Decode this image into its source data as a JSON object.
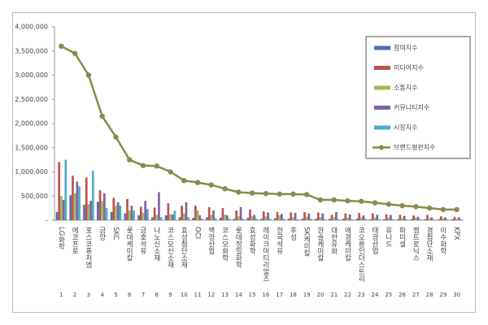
{
  "chart_data": {
    "type": "bar",
    "categories": [
      "LG화학",
      "에코프로",
      "포스코퓨처엠",
      "금양",
      "SKC",
      "롯데케미칼",
      "금호석유",
      "나노신소재",
      "코스모신소재",
      "효성첨단소재",
      "OCI",
      "백광산업",
      "코스모화학",
      "롯데정밀화학",
      "효성화학",
      "레이크머티리얼즈",
      "한국석유",
      "후성",
      "SK케미칼",
      "한솔케미칼",
      "대한유화",
      "애경케미칼",
      "코오롱인더스트리",
      "태광산업",
      "유니드",
      "파미셀",
      "켐트로닉스",
      "경첨단소재",
      "이수화학",
      "KPX"
    ],
    "ranks": [
      1,
      2,
      3,
      4,
      5,
      6,
      7,
      8,
      9,
      10,
      11,
      12,
      13,
      14,
      15,
      16,
      17,
      18,
      19,
      20,
      21,
      22,
      23,
      24,
      25,
      26,
      27,
      28,
      29,
      30
    ],
    "series": [
      {
        "name": "참여지수",
        "color": "#4f6fb5",
        "values": [
          170000,
          520000,
          320000,
          380000,
          170000,
          140000,
          100000,
          60000,
          100000,
          60000,
          50000,
          60000,
          50000,
          30000,
          50000,
          30000,
          40000,
          30000,
          30000,
          30000,
          30000,
          30000,
          30000,
          20000,
          20000,
          20000,
          20000,
          20000,
          20000,
          20000
        ]
      },
      {
        "name": "미디어지수",
        "color": "#c0504d",
        "values": [
          1200000,
          920000,
          880000,
          620000,
          460000,
          440000,
          280000,
          260000,
          350000,
          300000,
          300000,
          270000,
          250000,
          200000,
          220000,
          180000,
          170000,
          160000,
          170000,
          160000,
          110000,
          140000,
          150000,
          140000,
          120000,
          110000,
          100000,
          110000,
          80000,
          70000
        ]
      },
      {
        "name": "소통지수",
        "color": "#9bbb59",
        "values": [
          500000,
          560000,
          330000,
          400000,
          300000,
          200000,
          150000,
          110000,
          120000,
          140000,
          200000,
          110000,
          120000,
          80000,
          80000,
          80000,
          100000,
          60000,
          70000,
          60000,
          60000,
          50000,
          60000,
          50000,
          50000,
          40000,
          50000,
          40000,
          40000,
          30000
        ]
      },
      {
        "name": "커뮤니티지수",
        "color": "#8064a2",
        "values": [
          420000,
          800000,
          400000,
          560000,
          370000,
          300000,
          400000,
          580000,
          120000,
          370000,
          100000,
          200000,
          100000,
          270000,
          110000,
          160000,
          130000,
          150000,
          140000,
          140000,
          170000,
          120000,
          100000,
          110000,
          110000,
          90000,
          70000,
          60000,
          60000,
          60000
        ]
      },
      {
        "name": "시장지수",
        "color": "#4bacc6",
        "values": [
          1250000,
          700000,
          1020000,
          250000,
          300000,
          200000,
          230000,
          60000,
          200000,
          60000,
          30000,
          40000,
          30000,
          30000,
          30000,
          30000,
          30000,
          20000,
          30000,
          20000,
          20000,
          20000,
          30000,
          20000,
          20000,
          20000,
          20000,
          20000,
          20000,
          20000
        ]
      },
      {
        "name": "브랜드평판지수",
        "color": "#8c8a4b",
        "type": "line",
        "values": [
          3600000,
          3450000,
          3000000,
          2150000,
          1720000,
          1250000,
          1130000,
          1120000,
          1000000,
          820000,
          780000,
          730000,
          650000,
          580000,
          560000,
          550000,
          540000,
          540000,
          530000,
          420000,
          420000,
          400000,
          390000,
          360000,
          330000,
          300000,
          280000,
          250000,
          220000,
          220000
        ]
      }
    ],
    "ylim": [
      0,
      4000000
    ],
    "yticks": [
      {
        "value": 0,
        "label": "-"
      },
      {
        "value": 500000,
        "label": "500,000"
      },
      {
        "value": 1000000,
        "label": "1,000,000"
      },
      {
        "value": 1500000,
        "label": "1,500,000"
      },
      {
        "value": 2000000,
        "label": "2,000,000"
      },
      {
        "value": 2500000,
        "label": "2,500,000"
      },
      {
        "value": 3000000,
        "label": "3,000,000"
      },
      {
        "value": 3500000,
        "label": "3,500,000"
      },
      {
        "value": 4000000,
        "label": "4,000,000"
      }
    ]
  }
}
